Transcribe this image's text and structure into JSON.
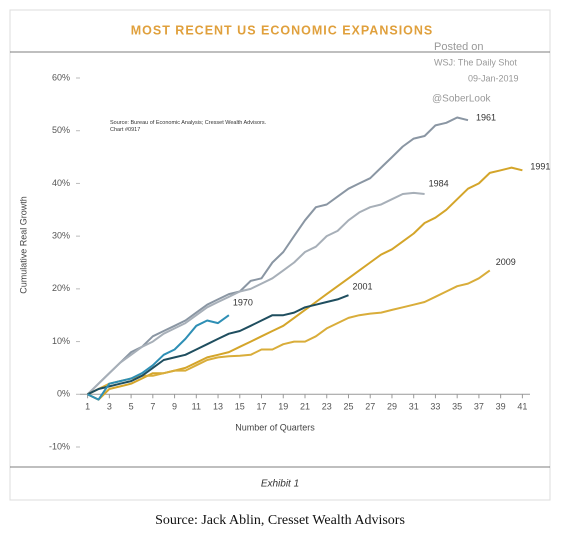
{
  "chart_data": {
    "type": "line",
    "title": "MOST RECENT US ECONOMIC EXPANSIONS",
    "source_note": "Source: Bureau of Economic Analysis; Cresset Wealth Advisors. Chart #0917",
    "y_label": "Cumulative Real Growth",
    "x_label": "Number of Quarters",
    "x": [
      1,
      2,
      3,
      4,
      5,
      6,
      7,
      8,
      9,
      10,
      11,
      12,
      13,
      14,
      15,
      16,
      17,
      18,
      19,
      20,
      21,
      22,
      23,
      24,
      25,
      26,
      27,
      28,
      29,
      30,
      31,
      32,
      33,
      34,
      35,
      36,
      37,
      38,
      39,
      40,
      41
    ],
    "xlim": [
      0.3,
      41.7
    ],
    "xticks": [
      1,
      3,
      5,
      7,
      9,
      11,
      13,
      15,
      17,
      19,
      21,
      23,
      25,
      27,
      29,
      31,
      33,
      35,
      37,
      39,
      41
    ],
    "ylim": [
      -10,
      60
    ],
    "yticks": [
      {
        "value": -10,
        "label": "-10%"
      },
      {
        "value": 0,
        "label": "0%"
      },
      {
        "value": 10,
        "label": "10%"
      },
      {
        "value": 20,
        "label": "20%"
      },
      {
        "value": 30,
        "label": "30%"
      },
      {
        "value": 40,
        "label": "40%"
      },
      {
        "value": 50,
        "label": "50%"
      },
      {
        "value": 60,
        "label": "60%"
      }
    ],
    "series": [
      {
        "name": "1961",
        "color": "#8a96a3",
        "values": [
          0,
          2,
          4,
          6,
          8,
          9,
          11,
          12,
          13,
          14,
          15.5,
          17,
          18,
          19,
          19.5,
          21.5,
          22,
          25,
          27,
          30,
          33,
          35.5,
          36,
          37.5,
          39,
          40,
          41,
          43,
          45,
          47,
          48.5,
          49,
          51,
          51.5,
          52.5,
          52,
          null,
          null,
          null,
          null,
          null
        ]
      },
      {
        "name": "1984",
        "color": "#a7afb8",
        "values": [
          0,
          2,
          4,
          6,
          7.5,
          9,
          10,
          11.5,
          12.5,
          13.5,
          15,
          16.5,
          17.5,
          18.5,
          19.5,
          20,
          21,
          22,
          23.5,
          25,
          27,
          28,
          30,
          31,
          33,
          34.5,
          35.5,
          36,
          37,
          38,
          38.2,
          38,
          null,
          null,
          null,
          null,
          null,
          null,
          null,
          null,
          null
        ]
      },
      {
        "name": "1991",
        "color": "#d4a52a",
        "values": [
          0,
          -1,
          1,
          1.5,
          2,
          3,
          4,
          4,
          4.5,
          5,
          6,
          7,
          7.5,
          8,
          9,
          10,
          11,
          12,
          13,
          14.5,
          16,
          17.5,
          19,
          20.5,
          22,
          23.5,
          25,
          26.5,
          27.5,
          29,
          30.5,
          32.5,
          33.5,
          35,
          37,
          39,
          40,
          42,
          42.5,
          43,
          42.5
        ]
      },
      {
        "name": "2009",
        "color": "#d9ad3a",
        "values": [
          0,
          1,
          2,
          2.5,
          3,
          3.5,
          3.5,
          4,
          4.5,
          4.5,
          5.5,
          6.5,
          7,
          7.2,
          7.3,
          7.5,
          8.5,
          8.5,
          9.5,
          10,
          10,
          11,
          12.5,
          13.5,
          14.5,
          15,
          15.3,
          15.5,
          16,
          16.5,
          17,
          17.5,
          18.5,
          19.5,
          20.5,
          21,
          22,
          23.5,
          null,
          null,
          null
        ]
      },
      {
        "name": "2001",
        "color": "#1f4e5f",
        "values": [
          0,
          1,
          1.5,
          2,
          2.5,
          3.5,
          5,
          6.5,
          7,
          7.5,
          8.5,
          9.5,
          10.5,
          11.5,
          12,
          13,
          14,
          15,
          15,
          15.5,
          16.5,
          17,
          17.5,
          18,
          18.8,
          null,
          null,
          null,
          null,
          null,
          null,
          null,
          null,
          null,
          null,
          null,
          null,
          null,
          null,
          null,
          null
        ]
      },
      {
        "name": "1970",
        "color": "#2e8fb5",
        "values": [
          0,
          -1,
          2,
          2.5,
          3,
          4,
          5.5,
          7.5,
          8.5,
          10.5,
          13,
          14,
          13.5,
          15,
          null,
          null,
          null,
          null,
          null,
          null,
          null,
          null,
          null,
          null,
          null,
          null,
          null,
          null,
          null,
          null,
          null,
          null,
          null,
          null,
          null,
          null,
          null,
          null,
          null,
          null,
          null
        ]
      }
    ]
  },
  "watermark": {
    "line1": "Posted on",
    "line2": "WSJ: The Daily Shot",
    "line3": "09-Jan-2019",
    "handle": "@SoberLook"
  },
  "footer": "Exhibit 1",
  "caption": "Source: Jack Ablin, Cresset Wealth Advisors"
}
